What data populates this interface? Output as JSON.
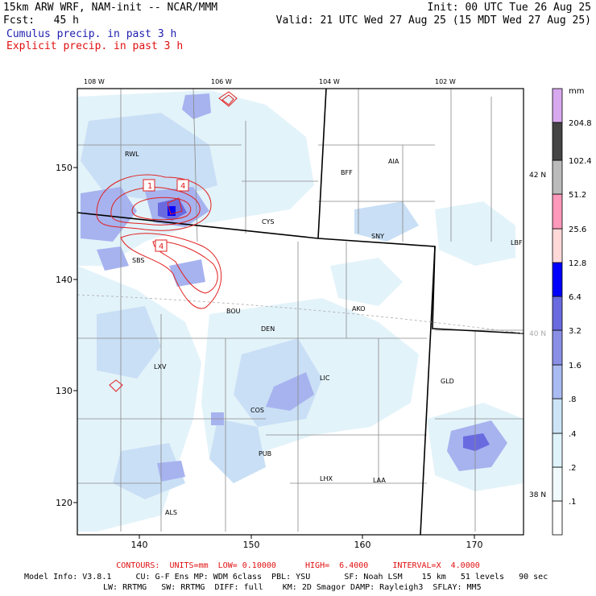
{
  "header": {
    "model_title": "15km ARW WRF, NAM-init -- NCAR/MMM",
    "forecast": "Fcst:   45 h",
    "init": "Init: 00 UTC Tue 26 Aug 25",
    "valid": "Valid: 21 UTC Wed 27 Aug 25 (15 MDT Wed 27 Aug 25)",
    "field1": "Cumulus precip. in past 3 h",
    "field2": "Explicit precip. in past 3 h"
  },
  "colors": {
    "field1": "#2020b0",
    "field2": "#e01010",
    "contour": "#e02020"
  },
  "map": {
    "lon_labels": [
      "108 W",
      "106 W",
      "104 W",
      "102 W"
    ],
    "lat_labels_right": [
      "42 N",
      "40 N",
      "38 N"
    ],
    "grid_x_ticks": [
      "140",
      "150",
      "160",
      "170"
    ],
    "grid_y_ticks": [
      "150",
      "140",
      "130",
      "120"
    ],
    "stations": [
      "RWL",
      "BFF",
      "AIA",
      "CYS",
      "SNY",
      "LBF",
      "SBS",
      "BOU",
      "AKO",
      "DEN",
      "LXV",
      "LIC",
      "GLD",
      "COS",
      "PUB",
      "LHX",
      "LAA",
      "ALS"
    ],
    "contour_labels": [
      "1",
      "4",
      "4"
    ]
  },
  "legend": {
    "units": "mm",
    "levels": [
      ".1",
      ".2",
      ".4",
      ".8",
      "1.6",
      "3.2",
      "6.4",
      "12.8",
      "25.6",
      "51.2",
      "102.4",
      "204.8"
    ],
    "swatch_colors": [
      "#ffffff",
      "#f0fafc",
      "#def3fa",
      "#cce4f6",
      "#aabbf2",
      "#8a8fe6",
      "#6a6ae0",
      "#0000ff",
      "#ffd8d8",
      "#ff99bb",
      "#bbbbbb",
      "#444444",
      "#d8a8ee"
    ]
  },
  "footer": {
    "contours": "CONTOURS:  UNITS=mm  LOW= 0.10000      HIGH=  6.4000     INTERVAL=X  4.0000",
    "model_info1": "Model Info: V3.8.1     CU: G-F Ens MP: WDM 6class  PBL: YSU       SF: Noah LSM    15 km   51 levels   90 sec",
    "model_info2": "LW: RRTMG   SW: RRTMG  DIFF: full    KM: 2D Smagor DAMP: Rayleigh3  SFLAY: MM5"
  }
}
